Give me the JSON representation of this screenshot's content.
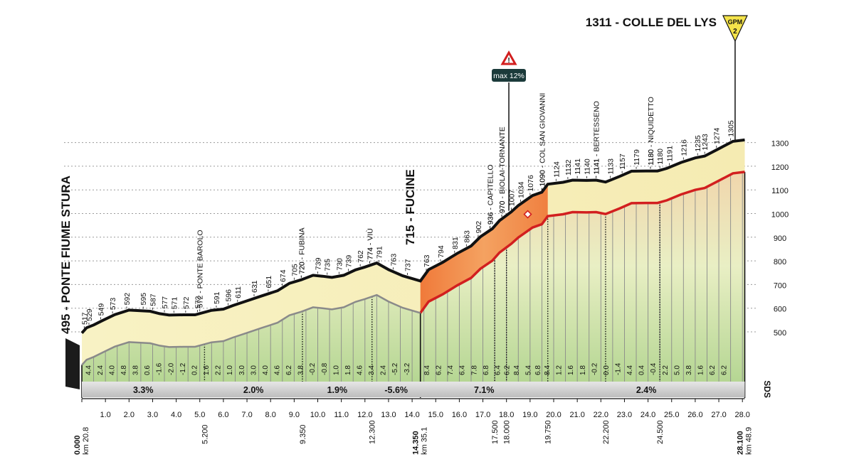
{
  "chart_data": {
    "type": "area",
    "title": "1311 - COLLE DEL LYS",
    "start": {
      "name": "495 - PONTE FIUME STURA",
      "km": "0.000",
      "km_total": "km 20.8"
    },
    "mid": {
      "name": "715 - FUCINE",
      "km": "14.350",
      "km_total": "km 35.1"
    },
    "finish": {
      "km": "28.100",
      "km_total": "km 48.9"
    },
    "gpm": {
      "label": "GPM",
      "category": "2"
    },
    "max_grade": "max 12%",
    "sponsor": "SDS",
    "ylim": [
      400,
      1330
    ],
    "y_ticks": [
      500,
      600,
      700,
      800,
      900,
      1000,
      1100,
      1200,
      1300
    ],
    "xlim": [
      0,
      28.1
    ],
    "x_ticks": [
      "0.0",
      "1.0",
      "2.0",
      "3.0",
      "4.0",
      "5.0",
      "6.0",
      "7.0",
      "8.0",
      "9.0",
      "10.0",
      "11.0",
      "12.0",
      "13.0",
      "14.0",
      "15.0",
      "16.0",
      "17.0",
      "18.0",
      "19.0",
      "20.0",
      "21.0",
      "22.0",
      "23.0",
      "24.0",
      "25.0",
      "26.0",
      "27.0",
      "28.0"
    ],
    "distance_markers": [
      {
        "km": 5.2,
        "label": "5.200"
      },
      {
        "km": 9.35,
        "label": "9.350"
      },
      {
        "km": 12.3,
        "label": "12.300"
      },
      {
        "km": 17.5,
        "label": "17.500"
      },
      {
        "km": 18.0,
        "label": "18.000"
      },
      {
        "km": 19.75,
        "label": "19.750"
      },
      {
        "km": 22.2,
        "label": "22.200"
      },
      {
        "km": 24.5,
        "label": "24.500"
      }
    ],
    "profile": [
      [
        0.0,
        495
      ],
      [
        0.2,
        517
      ],
      [
        0.5,
        529
      ],
      [
        0.9,
        549
      ],
      [
        1.4,
        573
      ],
      [
        2.0,
        592
      ],
      [
        2.9,
        587
      ],
      [
        3.3,
        577
      ],
      [
        3.7,
        571
      ],
      [
        4.3,
        572
      ],
      [
        4.8,
        572
      ],
      [
        5.5,
        591
      ],
      [
        6.0,
        596
      ],
      [
        6.4,
        611
      ],
      [
        7.0,
        631
      ],
      [
        7.6,
        651
      ],
      [
        8.3,
        674
      ],
      [
        8.8,
        705
      ],
      [
        9.3,
        720
      ],
      [
        9.8,
        739
      ],
      [
        10.2,
        735
      ],
      [
        10.6,
        730
      ],
      [
        11.1,
        739
      ],
      [
        11.6,
        762
      ],
      [
        12.0,
        774
      ],
      [
        12.5,
        791
      ],
      [
        13.0,
        763
      ],
      [
        13.6,
        737
      ],
      [
        14.35,
        715
      ],
      [
        14.7,
        763
      ],
      [
        15.3,
        794
      ],
      [
        15.9,
        831
      ],
      [
        16.5,
        863
      ],
      [
        16.9,
        902
      ],
      [
        17.4,
        936
      ],
      [
        17.7,
        970
      ],
      [
        18.2,
        1007
      ],
      [
        18.5,
        1034
      ],
      [
        19.1,
        1076
      ],
      [
        19.5,
        1090
      ],
      [
        19.75,
        1124
      ],
      [
        20.4,
        1132
      ],
      [
        20.8,
        1141
      ],
      [
        21.4,
        1140
      ],
      [
        21.8,
        1141
      ],
      [
        22.2,
        1133
      ],
      [
        22.8,
        1157
      ],
      [
        23.3,
        1179
      ],
      [
        23.9,
        1180
      ],
      [
        24.4,
        1180
      ],
      [
        24.8,
        1191
      ],
      [
        25.4,
        1216
      ],
      [
        26.0,
        1235
      ],
      [
        26.4,
        1243
      ],
      [
        27.0,
        1274
      ],
      [
        27.6,
        1305
      ],
      [
        28.1,
        1311
      ]
    ],
    "alt_labels": [
      {
        "km": 0.1,
        "alt": "517"
      },
      {
        "km": 0.3,
        "alt": "529"
      },
      {
        "km": 0.8,
        "alt": "549"
      },
      {
        "km": 1.3,
        "alt": "573"
      },
      {
        "km": 1.9,
        "alt": "592"
      },
      {
        "km": 2.6,
        "alt": "595"
      },
      {
        "km": 3.0,
        "alt": "587"
      },
      {
        "km": 3.5,
        "alt": "577"
      },
      {
        "km": 3.9,
        "alt": "571"
      },
      {
        "km": 4.4,
        "alt": "572"
      },
      {
        "km": 4.9,
        "alt": "572"
      },
      {
        "km": 5.7,
        "alt": "591"
      },
      {
        "km": 6.2,
        "alt": "596"
      },
      {
        "km": 6.6,
        "alt": "611"
      },
      {
        "km": 7.3,
        "alt": "631"
      },
      {
        "km": 7.9,
        "alt": "651"
      },
      {
        "km": 8.5,
        "alt": "674"
      },
      {
        "km": 9.0,
        "alt": "705"
      },
      {
        "km": 9.3,
        "alt": "720"
      },
      {
        "km": 10.0,
        "alt": "739"
      },
      {
        "km": 10.4,
        "alt": "735"
      },
      {
        "km": 10.9,
        "alt": "730"
      },
      {
        "km": 11.3,
        "alt": "739"
      },
      {
        "km": 11.8,
        "alt": "762"
      },
      {
        "km": 12.2,
        "alt": "774"
      },
      {
        "km": 12.6,
        "alt": "791"
      },
      {
        "km": 13.2,
        "alt": "763"
      },
      {
        "km": 13.8,
        "alt": "737"
      },
      {
        "km": 14.6,
        "alt": "763"
      },
      {
        "km": 15.2,
        "alt": "794"
      },
      {
        "km": 15.8,
        "alt": "831"
      },
      {
        "km": 16.3,
        "alt": "863"
      },
      {
        "km": 16.8,
        "alt": "902"
      },
      {
        "km": 17.3,
        "alt": "936"
      },
      {
        "km": 17.8,
        "alt": "970"
      },
      {
        "km": 18.2,
        "alt": "1007"
      },
      {
        "km": 18.6,
        "alt": "1034"
      },
      {
        "km": 19.0,
        "alt": "1076"
      },
      {
        "km": 19.5,
        "alt": "1090"
      },
      {
        "km": 20.1,
        "alt": "1124"
      },
      {
        "km": 20.6,
        "alt": "1132"
      },
      {
        "km": 21.0,
        "alt": "1141"
      },
      {
        "km": 21.4,
        "alt": "1140"
      },
      {
        "km": 21.8,
        "alt": "1141"
      },
      {
        "km": 22.4,
        "alt": "1133"
      },
      {
        "km": 22.9,
        "alt": "1157"
      },
      {
        "km": 23.5,
        "alt": "1179"
      },
      {
        "km": 24.1,
        "alt": "1180"
      },
      {
        "km": 24.5,
        "alt": "1180"
      },
      {
        "km": 24.9,
        "alt": "1191"
      },
      {
        "km": 25.5,
        "alt": "1216"
      },
      {
        "km": 26.1,
        "alt": "1235"
      },
      {
        "km": 26.4,
        "alt": "1243"
      },
      {
        "km": 26.9,
        "alt": "1274"
      },
      {
        "km": 27.5,
        "alt": "1305"
      }
    ],
    "place_labels": [
      {
        "km": 5.0,
        "text": "572 - PONTE BAROLO"
      },
      {
        "km": 9.3,
        "text": "720 - FUBINA"
      },
      {
        "km": 12.2,
        "text": "774 - VIÙ"
      },
      {
        "km": 17.3,
        "text": "936 - CAPITELLO"
      },
      {
        "km": 17.8,
        "text": "970 - BIOLAI-TORNANTE"
      },
      {
        "km": 19.5,
        "text": "1090 - COL SAN GIOVANNI"
      },
      {
        "km": 21.8,
        "text": "1141 - BERTESSENO"
      },
      {
        "km": 24.1,
        "text": "1180 - NIQUIDETTO"
      }
    ],
    "gradients": [
      {
        "km": 0.25,
        "v": "4.4"
      },
      {
        "km": 0.75,
        "v": "2.4"
      },
      {
        "km": 1.25,
        "v": "4.0"
      },
      {
        "km": 1.75,
        "v": "4.8"
      },
      {
        "km": 2.25,
        "v": "3.8"
      },
      {
        "km": 2.75,
        "v": "0.6"
      },
      {
        "km": 3.25,
        "v": "-1.6"
      },
      {
        "km": 3.75,
        "v": "-2.0"
      },
      {
        "km": 4.25,
        "v": "-1.2"
      },
      {
        "km": 4.75,
        "v": "0.2"
      },
      {
        "km": 5.25,
        "v": "1.6"
      },
      {
        "km": 5.75,
        "v": "2.2"
      },
      {
        "km": 6.25,
        "v": "1.0"
      },
      {
        "km": 6.75,
        "v": "3.0"
      },
      {
        "km": 7.25,
        "v": "3.0"
      },
      {
        "km": 7.75,
        "v": "4.0"
      },
      {
        "km": 8.25,
        "v": "4.6"
      },
      {
        "km": 8.75,
        "v": "6.2"
      },
      {
        "km": 9.25,
        "v": "3.8"
      },
      {
        "km": 9.75,
        "v": "-0.2"
      },
      {
        "km": 10.25,
        "v": "-0.8"
      },
      {
        "km": 10.75,
        "v": "1.0"
      },
      {
        "km": 11.25,
        "v": "1.8"
      },
      {
        "km": 11.75,
        "v": "4.6"
      },
      {
        "km": 12.25,
        "v": "3.4"
      },
      {
        "km": 12.75,
        "v": "2.4"
      },
      {
        "km": 13.25,
        "v": "-5.2"
      },
      {
        "km": 13.75,
        "v": "-3.2"
      },
      {
        "km": 14.6,
        "v": "8.4"
      },
      {
        "km": 15.1,
        "v": "6.2"
      },
      {
        "km": 15.6,
        "v": "7.4"
      },
      {
        "km": 16.1,
        "v": "6.4"
      },
      {
        "km": 16.6,
        "v": "7.8"
      },
      {
        "km": 17.1,
        "v": "6.8"
      },
      {
        "km": 17.6,
        "v": "6.4"
      },
      {
        "km": 18.0,
        "v": "6.2"
      },
      {
        "km": 18.4,
        "v": "8.4"
      },
      {
        "km": 18.9,
        "v": "5.4"
      },
      {
        "km": 19.3,
        "v": "6.8"
      },
      {
        "km": 19.7,
        "v": "8.4"
      },
      {
        "km": 20.2,
        "v": "1.2"
      },
      {
        "km": 20.7,
        "v": "1.6"
      },
      {
        "km": 21.2,
        "v": "1.8"
      },
      {
        "km": 21.7,
        "v": "-0.2"
      },
      {
        "km": 22.2,
        "v": "0.0"
      },
      {
        "km": 22.7,
        "v": "-1.4"
      },
      {
        "km": 23.2,
        "v": "4.4"
      },
      {
        "km": 23.7,
        "v": "0.4"
      },
      {
        "km": 24.2,
        "v": "-0.4"
      },
      {
        "km": 24.7,
        "v": "2.2"
      },
      {
        "km": 25.2,
        "v": "5.0"
      },
      {
        "km": 25.7,
        "v": "3.8"
      },
      {
        "km": 26.2,
        "v": "1.6"
      },
      {
        "km": 26.7,
        "v": "6.2"
      },
      {
        "km": 27.2,
        "v": "6.2"
      }
    ],
    "sections": [
      {
        "from": 0.0,
        "to": 5.2,
        "label": "3.3%"
      },
      {
        "from": 5.2,
        "to": 9.35,
        "label": "2.0%"
      },
      {
        "from": 9.35,
        "to": 12.3,
        "label": "1.9%"
      },
      {
        "from": 12.3,
        "to": 14.35,
        "label": "-5.6%"
      },
      {
        "from": 14.35,
        "to": 19.75,
        "label": "7.1%"
      },
      {
        "from": 19.75,
        "to": 28.1,
        "label": "2.4%"
      }
    ]
  }
}
